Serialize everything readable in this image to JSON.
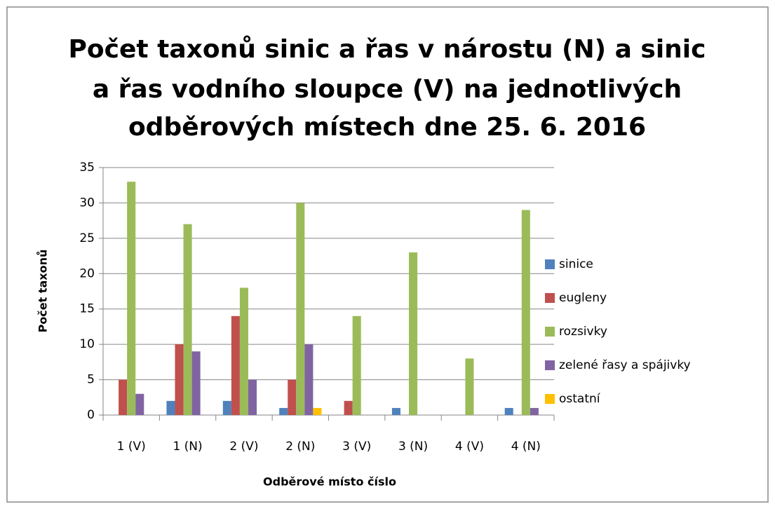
{
  "chart_data": {
    "type": "bar",
    "title": [
      "Počet taxonů sinic a řas v nárostu (N) a sinic",
      "a řas vodního sloupce (V) na jednotlivých",
      "odběrových místech dne 25. 6. 2016"
    ],
    "x_label": "Odběrové místo číslo",
    "y_label": "Počet taxonů",
    "categories": [
      "1 (V)",
      "1 (N)",
      "2 (V)",
      "2 (N)",
      "3 (V)",
      "3 (N)",
      "4 (V)",
      "4 (N)"
    ],
    "series": [
      {
        "name": "sinice",
        "color": "#4f81bd",
        "values": [
          0,
          2,
          2,
          1,
          0,
          1,
          0,
          1
        ]
      },
      {
        "name": "eugleny",
        "color": "#c0504d",
        "values": [
          5,
          10,
          14,
          5,
          2,
          0,
          0,
          0
        ]
      },
      {
        "name": "rozsivky",
        "color": "#9bbb59",
        "values": [
          33,
          27,
          18,
          30,
          14,
          23,
          8,
          29
        ]
      },
      {
        "name": "zelené řasy a spájivky",
        "color": "#8064a2",
        "values": [
          3,
          9,
          5,
          10,
          0,
          0,
          0,
          1
        ]
      },
      {
        "name": "ostatní",
        "color": "#ffc000",
        "values": [
          0,
          0,
          0,
          1,
          0,
          0,
          0,
          0
        ]
      }
    ],
    "ylim": [
      0,
      35
    ],
    "yticks": [
      0,
      5,
      10,
      15,
      20,
      25,
      30,
      35
    ],
    "grid": true,
    "legend": "right"
  }
}
